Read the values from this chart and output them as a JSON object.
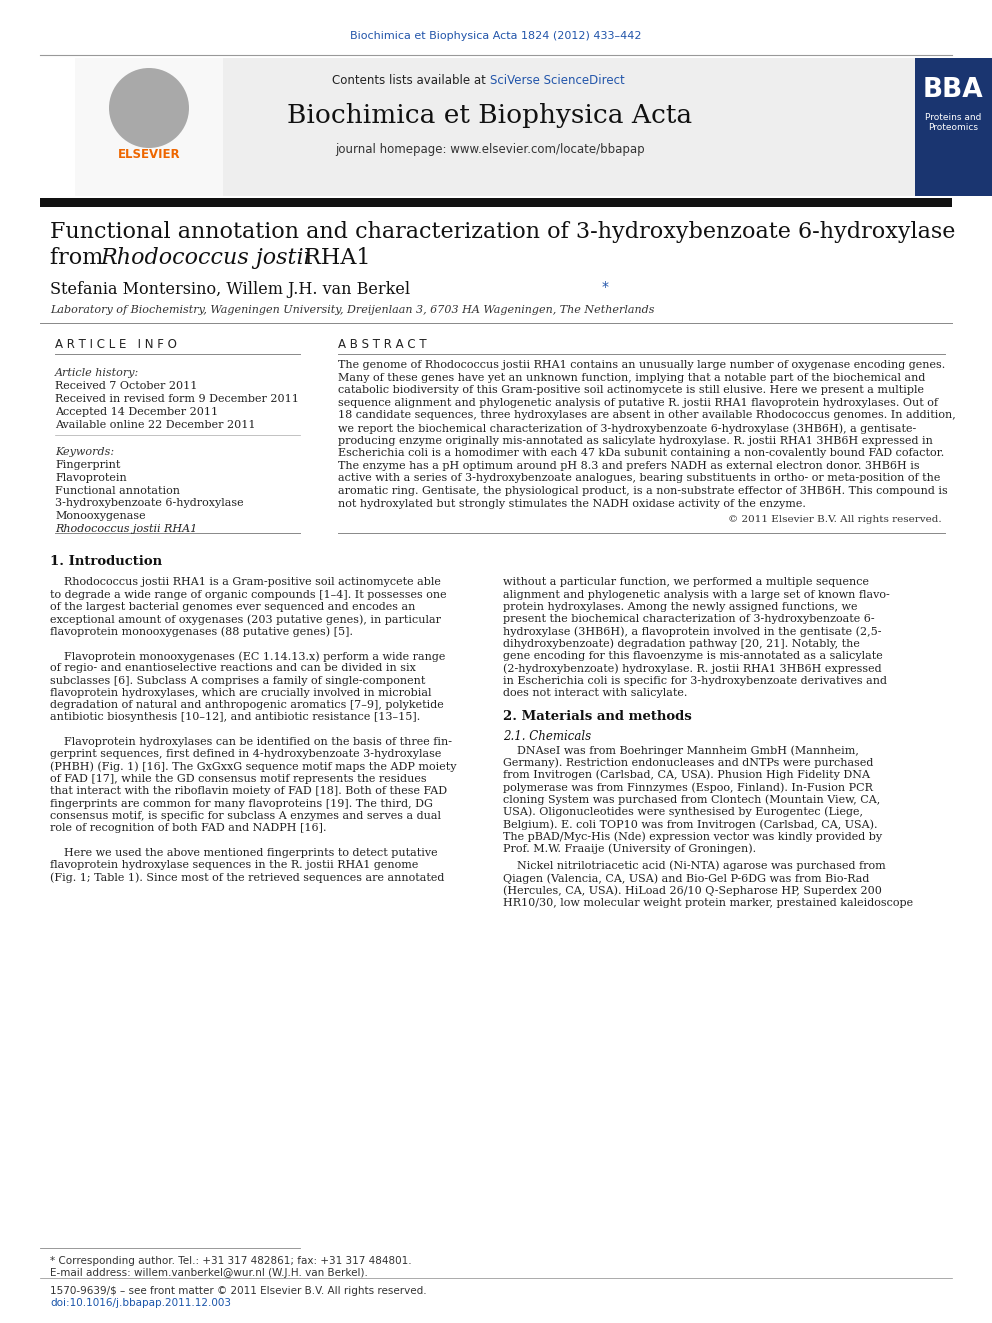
{
  "page_bg": "#ffffff",
  "top_journal_ref": "Biochimica et Biophysica Acta 1824 (2012) 433–442",
  "top_journal_ref_color": "#2255aa",
  "header_bg": "#e8e8e8",
  "header_contents_text": "Contents lists available at ",
  "header_sciverse_text": "SciVerse ScienceDirect",
  "header_sciverse_color": "#2255aa",
  "journal_title": "Biochimica et Biophysica Acta",
  "journal_homepage": "journal homepage: www.elsevier.com/locate/bbapap",
  "thick_bar_color": "#1a1a1a",
  "article_title_line1": "Functional annotation and characterization of 3-hydroxybenzoate 6-hydroxylase",
  "article_title_line2_pre": "from ",
  "article_title_line2_italic": "Rhodococcus jostii",
  "article_title_line2_post": " RHA1",
  "authors_pre": "Stefania Montersino, Willem J.H. van Berkel ",
  "authors_star": "*",
  "affiliation": "Laboratory of Biochemistry, Wageningen University, Dreijenlaan 3, 6703 HA Wageningen, The Netherlands",
  "article_info_header": "A R T I C L E   I N F O",
  "abstract_header": "A B S T R A C T",
  "article_history_label": "Article history:",
  "received1": "Received 7 October 2011",
  "received2": "Received in revised form 9 December 2011",
  "accepted": "Accepted 14 December 2011",
  "available": "Available online 22 December 2011",
  "keywords_label": "Keywords:",
  "keywords": [
    "Fingerprint",
    "Flavoprotein",
    "Functional annotation",
    "3-hydroxybenzoate 6-hydroxylase",
    "Monooxygenase",
    "Rhodococcus jostii RHA1"
  ],
  "abstract_lines": [
    "The genome of Rhodococcus jostii RHA1 contains an unusually large number of oxygenase encoding genes.",
    "Many of these genes have yet an unknown function, implying that a notable part of the biochemical and",
    "catabolic biodiversity of this Gram-positive soil actinomycete is still elusive. Here we present a multiple",
    "sequence alignment and phylogenetic analysis of putative R. jostii RHA1 flavoprotein hydroxylases. Out of",
    "18 candidate sequences, three hydroxylases are absent in other available Rhodococcus genomes. In addition,",
    "we report the biochemical characterization of 3-hydroxybenzoate 6-hydroxylase (3HB6H), a gentisate-",
    "producing enzyme originally mis-annotated as salicylate hydroxylase. R. jostii RHA1 3HB6H expressed in",
    "Escherichia coli is a homodimer with each 47 kDa subunit containing a non-covalently bound FAD cofactor.",
    "The enzyme has a pH optimum around pH 8.3 and prefers NADH as external electron donor. 3HB6H is",
    "active with a series of 3-hydroxybenzoate analogues, bearing substituents in ortho- or meta-position of the",
    "aromatic ring. Gentisate, the physiological product, is a non-substrate effector of 3HB6H. This compound is",
    "not hydroxylated but strongly stimulates the NADH oxidase activity of the enzyme."
  ],
  "copyright": "© 2011 Elsevier B.V. All rights reserved.",
  "intro_header": "1. Introduction",
  "intro_col1_lines": [
    "    Rhodococcus jostii RHA1 is a Gram-positive soil actinomycete able",
    "to degrade a wide range of organic compounds [1–4]. It possesses one",
    "of the largest bacterial genomes ever sequenced and encodes an",
    "exceptional amount of oxygenases (203 putative genes), in particular",
    "flavoprotein monooxygenases (88 putative genes) [5].",
    "",
    "    Flavoprotein monooxygenases (EC 1.14.13.x) perform a wide range",
    "of regio- and enantioselective reactions and can be divided in six",
    "subclasses [6]. Subclass A comprises a family of single-component",
    "flavoprotein hydroxylases, which are crucially involved in microbial",
    "degradation of natural and anthropogenic aromatics [7–9], polyketide",
    "antibiotic biosynthesis [10–12], and antibiotic resistance [13–15].",
    "",
    "    Flavoprotein hydroxylases can be identified on the basis of three fin-",
    "gerprint sequences, first defined in 4-hydroxybenzoate 3-hydroxylase",
    "(PHBH) (Fig. 1) [16]. The GxGxxG sequence motif maps the ADP moiety",
    "of FAD [17], while the GD consensus motif represents the residues",
    "that interact with the riboflavin moiety of FAD [18]. Both of these FAD",
    "fingerprints are common for many flavoproteins [19]. The third, DG",
    "consensus motif, is specific for subclass A enzymes and serves a dual",
    "role of recognition of both FAD and NADPH [16].",
    "",
    "    Here we used the above mentioned fingerprints to detect putative",
    "flavoprotein hydroxylase sequences in the R. jostii RHA1 genome",
    "(Fig. 1; Table 1). Since most of the retrieved sequences are annotated"
  ],
  "intro_col2_lines": [
    "without a particular function, we performed a multiple sequence",
    "alignment and phylogenetic analysis with a large set of known flavo-",
    "protein hydroxylases. Among the newly assigned functions, we",
    "present the biochemical characterization of 3-hydroxybenzoate 6-",
    "hydroxylase (3HB6H), a flavoprotein involved in the gentisate (2,5-",
    "dihydroxybenzoate) degradation pathway [20, 21]. Notably, the",
    "gene encoding for this flavoenzyme is mis-annotated as a salicylate",
    "(2-hydroxybenzoate) hydroxylase. R. jostii RHA1 3HB6H expressed",
    "in Escherichia coli is specific for 3-hydroxybenzoate derivatives and",
    "does not interact with salicylate."
  ],
  "section2_header": "2. Materials and methods",
  "section21_header": "2.1. Chemicals",
  "chem_lines": [
    "    DNAseI was from Boehringer Mannheim GmbH (Mannheim,",
    "Germany). Restriction endonucleases and dNTPs were purchased",
    "from Invitrogen (Carlsbad, CA, USA). Phusion High Fidelity DNA",
    "polymerase was from Finnzymes (Espoo, Finland). In-Fusion PCR",
    "cloning System was purchased from Clontech (Mountain View, CA,",
    "USA). Oligonucleotides were synthesised by Eurogentec (Liege,",
    "Belgium). E. coli TOP10 was from Invitrogen (Carlsbad, CA, USA).",
    "The pBAD/Myc-His (Nde) expression vector was kindly provided by",
    "Prof. M.W. Fraaije (University of Groningen)."
  ],
  "chem2_lines": [
    "    Nickel nitrilotriacetic acid (Ni-NTA) agarose was purchased from",
    "Qiagen (Valencia, CA, USA) and Bio-Gel P-6DG was from Bio-Rad",
    "(Hercules, CA, USA). HiLoad 26/10 Q-Sepharose HP, Superdex 200",
    "HR10/30, low molecular weight protein marker, prestained kaleidoscope"
  ],
  "footnote_star": "* Corresponding author. Tel.: +31 317 482861; fax: +31 317 484801.",
  "footnote_email": "E-mail address: willem.vanberkel@wur.nl (W.J.H. van Berkel).",
  "footer_text1": "1570-9639/$ – see front matter © 2011 Elsevier B.V. All rights reserved.",
  "footer_text2": "doi:10.1016/j.bbapap.2011.12.003"
}
